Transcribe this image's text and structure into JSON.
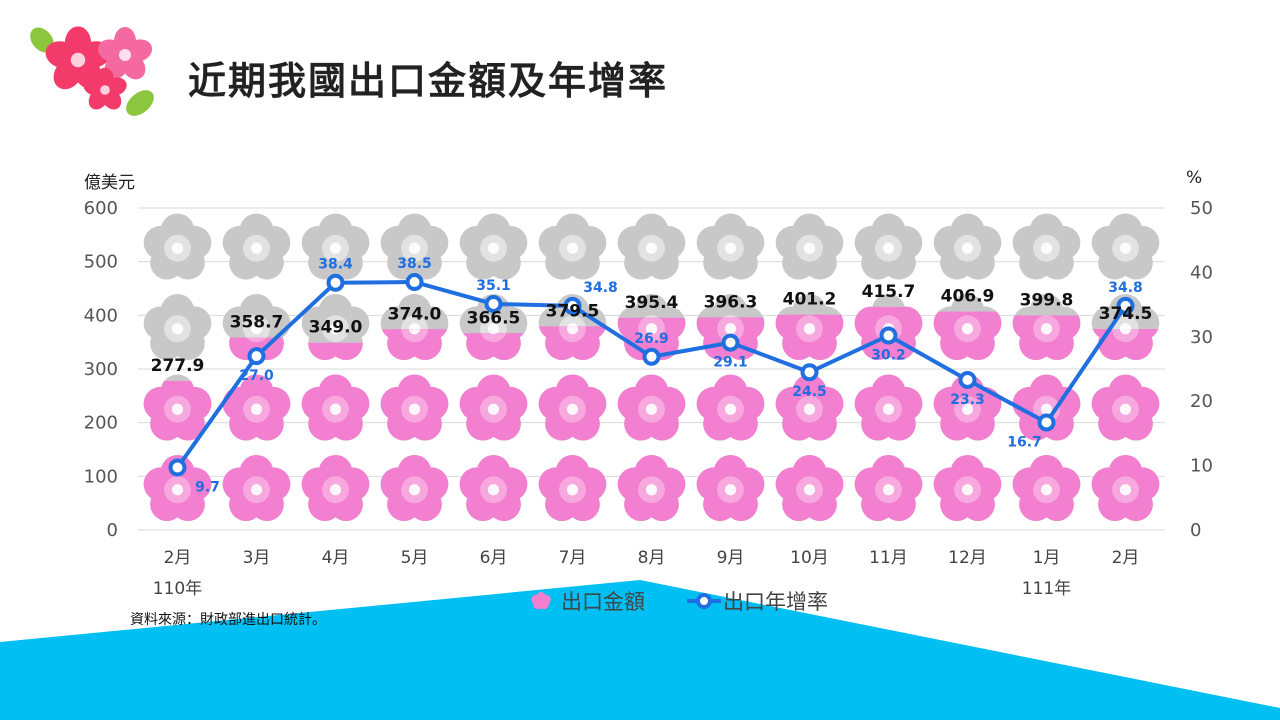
{
  "page": {
    "title": "近期我國出口金額及年增率",
    "source": "資料來源：財政部進出口統計。"
  },
  "colors": {
    "flower_pink": "#f27fcf",
    "flower_gray": "#c8c8c8",
    "line_blue": "#1f6fe0",
    "label_blue": "#1f6fe0",
    "bottom_band": "#00bff3"
  },
  "chart_data": {
    "type": "bar+line",
    "categories": [
      "2月",
      "3月",
      "4月",
      "5月",
      "6月",
      "7月",
      "8月",
      "9月",
      "10月",
      "11月",
      "12月",
      "1月",
      "2月"
    ],
    "year_labels": [
      {
        "index": 0,
        "label": "110年"
      },
      {
        "index": 11,
        "label": "111年"
      }
    ],
    "y_left": {
      "unit": "億美元",
      "ticks": [
        0,
        100,
        200,
        300,
        400,
        500,
        600
      ],
      "ylim": [
        0,
        600
      ]
    },
    "y_right": {
      "unit": "%",
      "ticks": [
        0,
        10,
        20,
        30,
        40,
        50
      ],
      "ylim": [
        0,
        50
      ]
    },
    "series": [
      {
        "name": "出口金額",
        "axis": "left",
        "kind": "pictograph-bar",
        "values": [
          277.9,
          358.7,
          349.0,
          374.0,
          366.5,
          379.5,
          395.4,
          396.3,
          401.2,
          415.7,
          406.9,
          399.8,
          374.5
        ]
      },
      {
        "name": "出口年增率",
        "axis": "right",
        "kind": "line",
        "values": [
          9.7,
          27.0,
          38.4,
          38.5,
          35.1,
          34.8,
          26.9,
          29.1,
          24.5,
          30.2,
          23.3,
          16.7,
          34.8
        ]
      }
    ],
    "bar_labels": [
      "277.9",
      "358.7",
      "349.0",
      "374.0",
      "366.5",
      "379.5",
      "395.4",
      "396.3",
      "401.2",
      "415.7",
      "406.9",
      "399.8",
      "374.5"
    ],
    "line_labels": [
      "9.7",
      "27.0",
      "38.4",
      "38.5",
      "35.1",
      "34.8",
      "26.9",
      "29.1",
      "24.5",
      "30.2",
      "23.3",
      "16.7",
      "34.8"
    ],
    "grid": true,
    "legend_position": "bottom"
  }
}
